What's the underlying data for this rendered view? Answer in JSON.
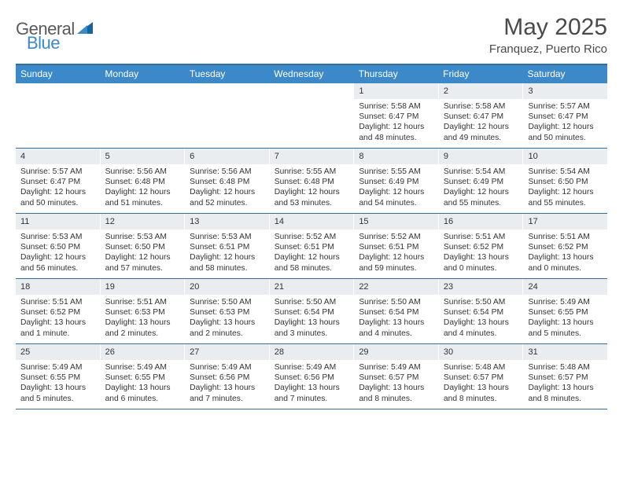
{
  "brand": {
    "text_general": "General",
    "text_blue": "Blue",
    "mark_fill": "#1264a3"
  },
  "header": {
    "month_title": "May 2025",
    "location": "Franquez, Puerto Rico"
  },
  "colors": {
    "header_bar": "#3b89c9",
    "border_top": "#2f6ea8",
    "daynum_bg": "#e9edf0",
    "text": "#333333"
  },
  "weekdays": [
    "Sunday",
    "Monday",
    "Tuesday",
    "Wednesday",
    "Thursday",
    "Friday",
    "Saturday"
  ],
  "weeks": [
    [
      null,
      null,
      null,
      null,
      {
        "n": "1",
        "sunrise": "5:58 AM",
        "sunset": "6:47 PM",
        "daylight": "12 hours and 48 minutes."
      },
      {
        "n": "2",
        "sunrise": "5:58 AM",
        "sunset": "6:47 PM",
        "daylight": "12 hours and 49 minutes."
      },
      {
        "n": "3",
        "sunrise": "5:57 AM",
        "sunset": "6:47 PM",
        "daylight": "12 hours and 50 minutes."
      }
    ],
    [
      {
        "n": "4",
        "sunrise": "5:57 AM",
        "sunset": "6:47 PM",
        "daylight": "12 hours and 50 minutes."
      },
      {
        "n": "5",
        "sunrise": "5:56 AM",
        "sunset": "6:48 PM",
        "daylight": "12 hours and 51 minutes."
      },
      {
        "n": "6",
        "sunrise": "5:56 AM",
        "sunset": "6:48 PM",
        "daylight": "12 hours and 52 minutes."
      },
      {
        "n": "7",
        "sunrise": "5:55 AM",
        "sunset": "6:48 PM",
        "daylight": "12 hours and 53 minutes."
      },
      {
        "n": "8",
        "sunrise": "5:55 AM",
        "sunset": "6:49 PM",
        "daylight": "12 hours and 54 minutes."
      },
      {
        "n": "9",
        "sunrise": "5:54 AM",
        "sunset": "6:49 PM",
        "daylight": "12 hours and 55 minutes."
      },
      {
        "n": "10",
        "sunrise": "5:54 AM",
        "sunset": "6:50 PM",
        "daylight": "12 hours and 55 minutes."
      }
    ],
    [
      {
        "n": "11",
        "sunrise": "5:53 AM",
        "sunset": "6:50 PM",
        "daylight": "12 hours and 56 minutes."
      },
      {
        "n": "12",
        "sunrise": "5:53 AM",
        "sunset": "6:50 PM",
        "daylight": "12 hours and 57 minutes."
      },
      {
        "n": "13",
        "sunrise": "5:53 AM",
        "sunset": "6:51 PM",
        "daylight": "12 hours and 58 minutes."
      },
      {
        "n": "14",
        "sunrise": "5:52 AM",
        "sunset": "6:51 PM",
        "daylight": "12 hours and 58 minutes."
      },
      {
        "n": "15",
        "sunrise": "5:52 AM",
        "sunset": "6:51 PM",
        "daylight": "12 hours and 59 minutes."
      },
      {
        "n": "16",
        "sunrise": "5:51 AM",
        "sunset": "6:52 PM",
        "daylight": "13 hours and 0 minutes."
      },
      {
        "n": "17",
        "sunrise": "5:51 AM",
        "sunset": "6:52 PM",
        "daylight": "13 hours and 0 minutes."
      }
    ],
    [
      {
        "n": "18",
        "sunrise": "5:51 AM",
        "sunset": "6:52 PM",
        "daylight": "13 hours and 1 minute."
      },
      {
        "n": "19",
        "sunrise": "5:51 AM",
        "sunset": "6:53 PM",
        "daylight": "13 hours and 2 minutes."
      },
      {
        "n": "20",
        "sunrise": "5:50 AM",
        "sunset": "6:53 PM",
        "daylight": "13 hours and 2 minutes."
      },
      {
        "n": "21",
        "sunrise": "5:50 AM",
        "sunset": "6:54 PM",
        "daylight": "13 hours and 3 minutes."
      },
      {
        "n": "22",
        "sunrise": "5:50 AM",
        "sunset": "6:54 PM",
        "daylight": "13 hours and 4 minutes."
      },
      {
        "n": "23",
        "sunrise": "5:50 AM",
        "sunset": "6:54 PM",
        "daylight": "13 hours and 4 minutes."
      },
      {
        "n": "24",
        "sunrise": "5:49 AM",
        "sunset": "6:55 PM",
        "daylight": "13 hours and 5 minutes."
      }
    ],
    [
      {
        "n": "25",
        "sunrise": "5:49 AM",
        "sunset": "6:55 PM",
        "daylight": "13 hours and 5 minutes."
      },
      {
        "n": "26",
        "sunrise": "5:49 AM",
        "sunset": "6:55 PM",
        "daylight": "13 hours and 6 minutes."
      },
      {
        "n": "27",
        "sunrise": "5:49 AM",
        "sunset": "6:56 PM",
        "daylight": "13 hours and 7 minutes."
      },
      {
        "n": "28",
        "sunrise": "5:49 AM",
        "sunset": "6:56 PM",
        "daylight": "13 hours and 7 minutes."
      },
      {
        "n": "29",
        "sunrise": "5:49 AM",
        "sunset": "6:57 PM",
        "daylight": "13 hours and 8 minutes."
      },
      {
        "n": "30",
        "sunrise": "5:48 AM",
        "sunset": "6:57 PM",
        "daylight": "13 hours and 8 minutes."
      },
      {
        "n": "31",
        "sunrise": "5:48 AM",
        "sunset": "6:57 PM",
        "daylight": "13 hours and 8 minutes."
      }
    ]
  ],
  "labels": {
    "sunrise": "Sunrise: ",
    "sunset": "Sunset: ",
    "daylight": "Daylight: "
  }
}
